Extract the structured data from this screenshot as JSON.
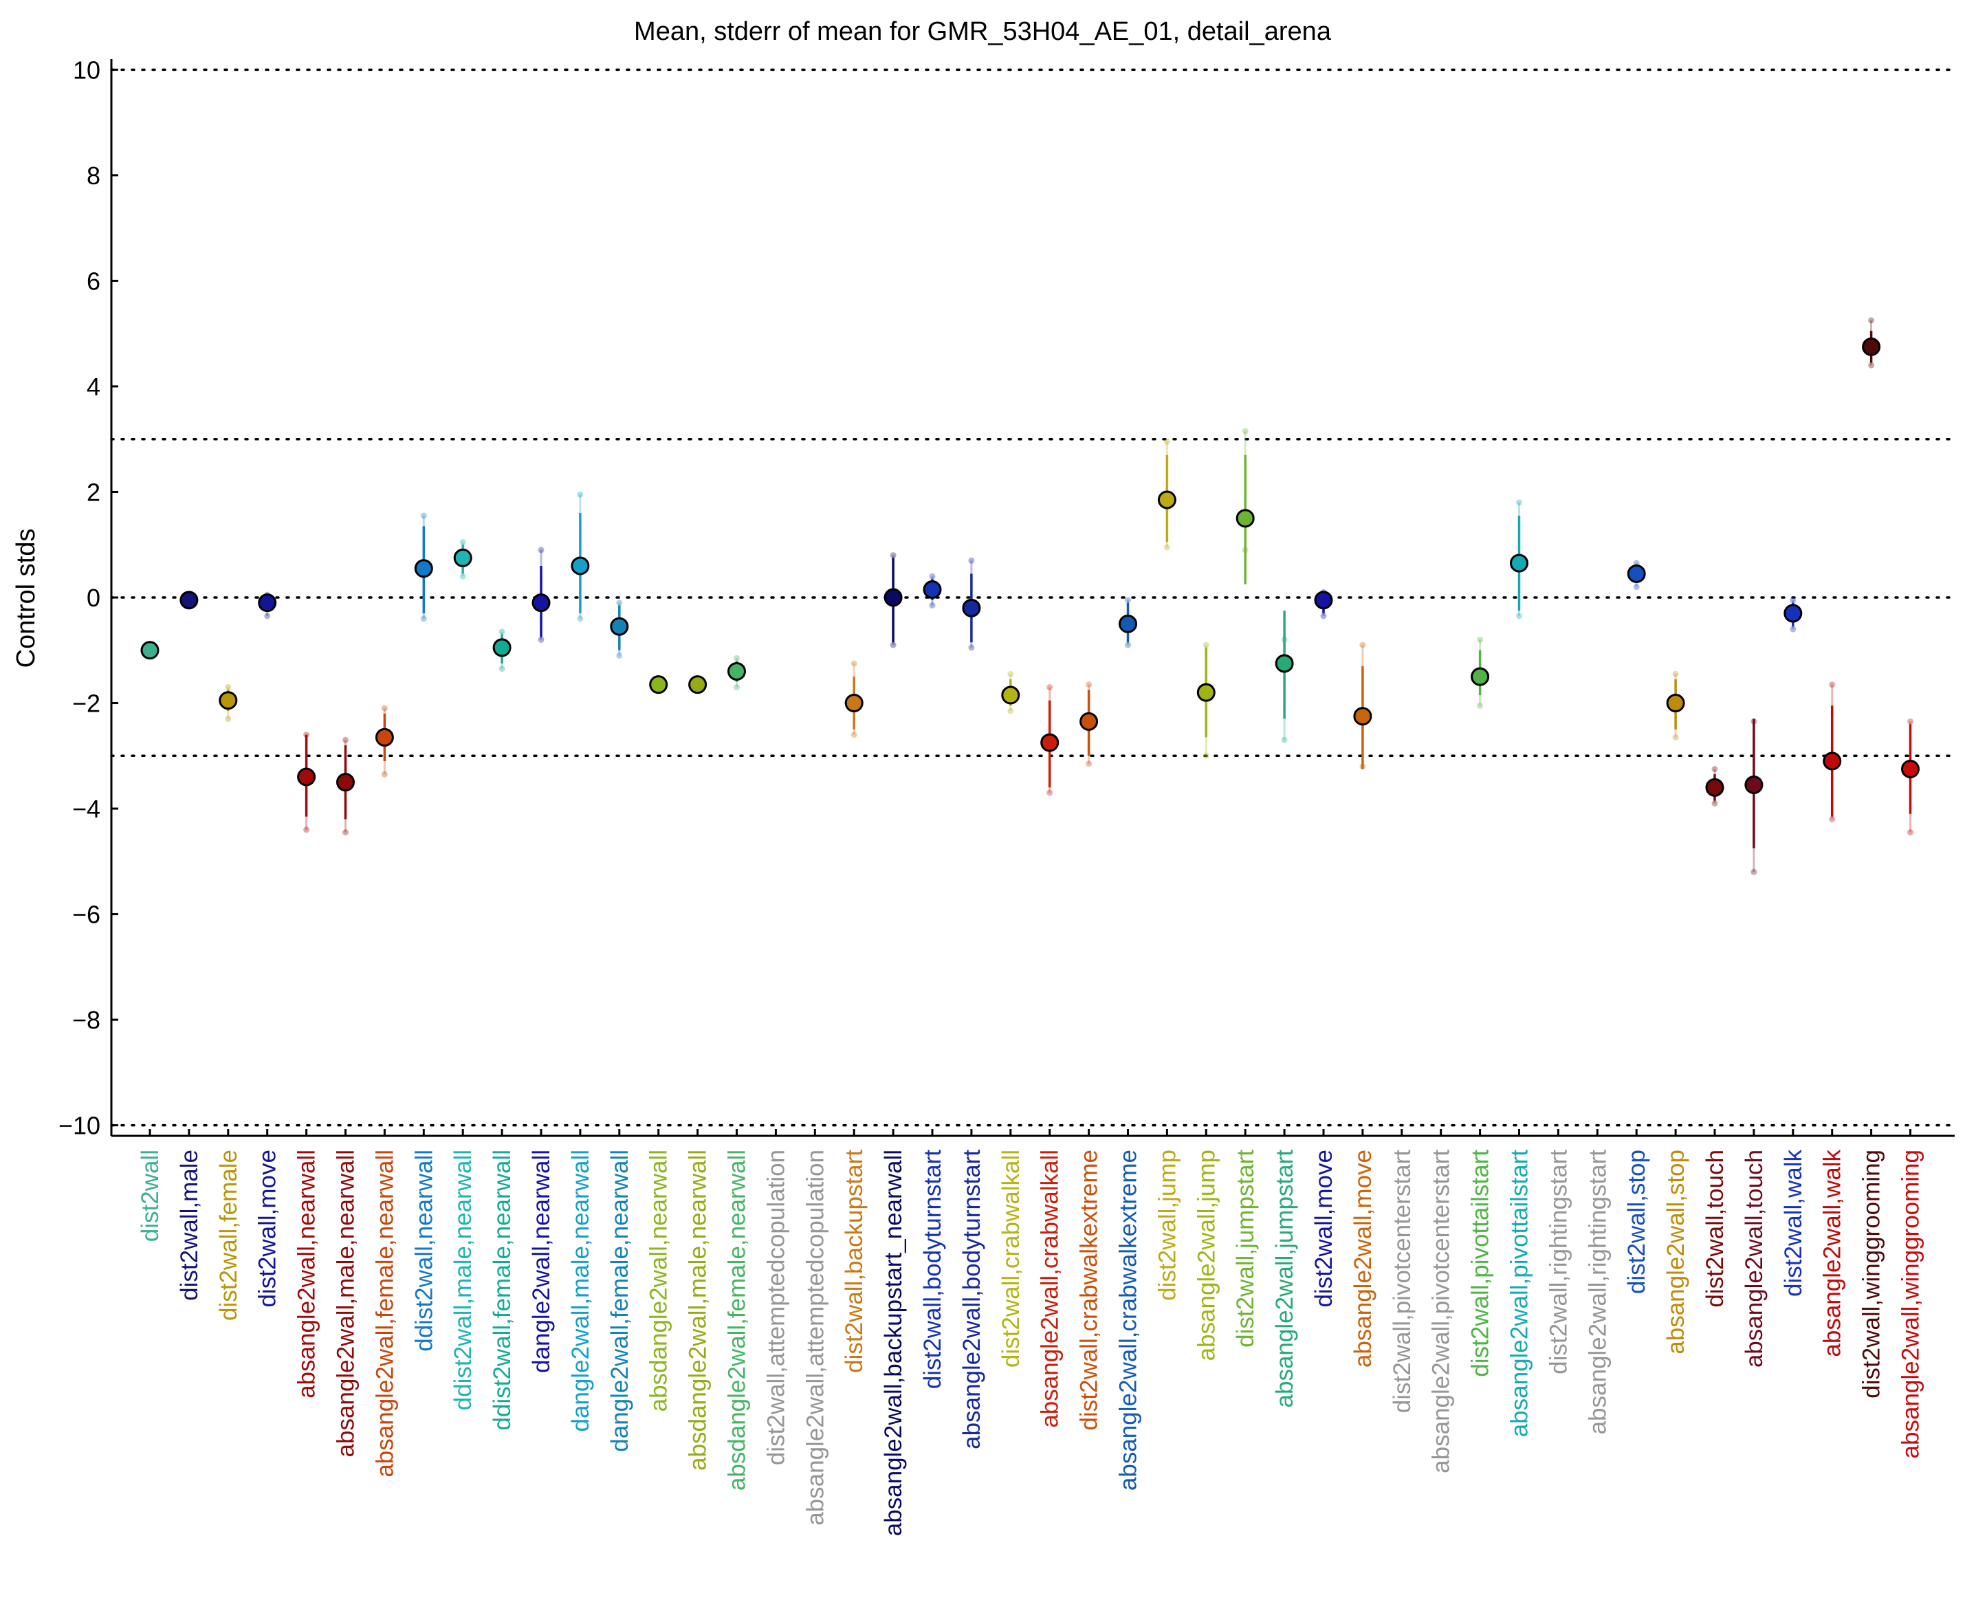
{
  "chart_data": {
    "type": "scatter",
    "title": "Mean, stderr of mean for GMR_53H04_AE_01, detail_arena",
    "xlabel": "",
    "ylabel": "Control stds",
    "ylim": [
      -10.2,
      10.2
    ],
    "yticks": [
      "10",
      "8",
      "6",
      "4",
      "2",
      "0",
      "−2",
      "−4",
      "−6",
      "−8",
      "−10"
    ],
    "ytick_values": [
      10,
      8,
      6,
      4,
      2,
      0,
      -2,
      -4,
      -6,
      -8,
      -10
    ],
    "reference_lines": [
      10,
      3,
      0,
      -3,
      -10
    ],
    "grid": false,
    "categories": [
      {
        "label": "dist2wall",
        "mean": -1.0,
        "se_lo": null,
        "se_hi": null,
        "min": null,
        "max": null,
        "color": "#3cb08c"
      },
      {
        "label": "dist2wall,male",
        "mean": -0.05,
        "se_lo": null,
        "se_hi": null,
        "min": null,
        "max": null,
        "color": "#141478"
      },
      {
        "label": "dist2wall,female",
        "mean": -1.95,
        "se_lo": -2.15,
        "se_hi": -1.75,
        "min": -2.3,
        "max": -1.7,
        "color": "#b8960a"
      },
      {
        "label": "dist2wall,move",
        "mean": -0.1,
        "se_lo": -0.25,
        "se_hi": 0.02,
        "min": -0.35,
        "max": 0.05,
        "color": "#141496"
      },
      {
        "label": "absangle2wall,nearwall",
        "mean": -3.4,
        "se_lo": -4.15,
        "se_hi": -2.6,
        "min": -4.4,
        "max": -2.6,
        "color": "#a00a0a"
      },
      {
        "label": "absangle2wall,male,nearwall",
        "mean": -3.5,
        "se_lo": -4.2,
        "se_hi": -2.8,
        "min": -4.45,
        "max": -2.7,
        "color": "#8c0a0a"
      },
      {
        "label": "absangle2wall,female,nearwall",
        "mean": -2.65,
        "se_lo": -3.1,
        "se_hi": -2.2,
        "min": -3.35,
        "max": -2.1,
        "color": "#c8460a"
      },
      {
        "label": "ddist2wall,nearwall",
        "mean": 0.55,
        "se_lo": -0.3,
        "se_hi": 1.35,
        "min": -0.4,
        "max": 1.55,
        "color": "#1478c8"
      },
      {
        "label": "ddist2wall,male,nearwall",
        "mean": 0.75,
        "se_lo": 0.45,
        "se_hi": 1.0,
        "min": 0.4,
        "max": 1.05,
        "color": "#1eb4b4"
      },
      {
        "label": "ddist2wall,female,nearwall",
        "mean": -0.95,
        "se_lo": -1.25,
        "se_hi": -0.7,
        "min": -1.35,
        "max": -0.65,
        "color": "#14aa96"
      },
      {
        "label": "dangle2wall,nearwall",
        "mean": -0.1,
        "se_lo": -0.75,
        "se_hi": 0.6,
        "min": -0.8,
        "max": 0.9,
        "color": "#1414a0"
      },
      {
        "label": "dangle2wall,male,nearwall",
        "mean": 0.6,
        "se_lo": -0.3,
        "se_hi": 1.6,
        "min": -0.4,
        "max": 1.95,
        "color": "#14a0c8"
      },
      {
        "label": "dangle2wall,female,nearwall",
        "mean": -0.55,
        "se_lo": -1.0,
        "se_hi": -0.15,
        "min": -1.1,
        "max": -0.1,
        "color": "#1482b4"
      },
      {
        "label": "absdangle2wall,nearwall",
        "mean": -1.65,
        "se_lo": null,
        "se_hi": null,
        "min": null,
        "max": null,
        "color": "#8cb41e"
      },
      {
        "label": "absdangle2wall,male,nearwall",
        "mean": -1.65,
        "se_lo": null,
        "se_hi": null,
        "min": null,
        "max": null,
        "color": "#96aa14"
      },
      {
        "label": "absdangle2wall,female,nearwall",
        "mean": -1.4,
        "se_lo": -1.6,
        "se_hi": -1.2,
        "min": -1.7,
        "max": -1.15,
        "color": "#46b464"
      },
      {
        "label": "dist2wall,attemptedcopulation",
        "mean": null,
        "se_lo": null,
        "se_hi": null,
        "min": null,
        "max": null,
        "color": "#969696"
      },
      {
        "label": "absangle2wall,attemptedcopulation",
        "mean": null,
        "se_lo": null,
        "se_hi": null,
        "min": null,
        "max": null,
        "color": "#969696"
      },
      {
        "label": "dist2wall,backupstart",
        "mean": -2.0,
        "se_lo": -2.5,
        "se_hi": -1.5,
        "min": -2.6,
        "max": -1.25,
        "color": "#c87814"
      },
      {
        "label": "absangle2wall,backupstart_nearwall",
        "mean": 0.0,
        "se_lo": -0.85,
        "se_hi": 0.75,
        "min": -0.9,
        "max": 0.8,
        "color": "#0a0a64"
      },
      {
        "label": "dist2wall,bodyturnstart",
        "mean": 0.15,
        "se_lo": -0.05,
        "se_hi": 0.35,
        "min": -0.15,
        "max": 0.4,
        "color": "#1432b4"
      },
      {
        "label": "absangle2wall,bodyturnstart",
        "mean": -0.2,
        "se_lo": -0.85,
        "se_hi": 0.45,
        "min": -0.95,
        "max": 0.7,
        "color": "#1428a0"
      },
      {
        "label": "dist2wall,crabwalkall",
        "mean": -1.85,
        "se_lo": -2.05,
        "se_hi": -1.55,
        "min": -2.15,
        "max": -1.45,
        "color": "#b4b414"
      },
      {
        "label": "absangle2wall,crabwalkall",
        "mean": -2.75,
        "se_lo": -3.6,
        "se_hi": -1.95,
        "min": -3.7,
        "max": -1.7,
        "color": "#c81e0a"
      },
      {
        "label": "dist2wall,crabwalkextreme",
        "mean": -2.35,
        "se_lo": -3.0,
        "se_hi": -1.75,
        "min": -3.15,
        "max": -1.65,
        "color": "#c8500a"
      },
      {
        "label": "absangle2wall,crabwalkextreme",
        "mean": -0.5,
        "se_lo": -0.85,
        "se_hi": -0.1,
        "min": -0.9,
        "max": -0.05,
        "color": "#145ab4"
      },
      {
        "label": "dist2wall,jump",
        "mean": 1.85,
        "se_lo": 1.05,
        "se_hi": 2.7,
        "min": 0.95,
        "max": 2.95,
        "color": "#beaa14"
      },
      {
        "label": "absangle2wall,jump",
        "mean": -1.8,
        "se_lo": -2.65,
        "se_hi": -0.95,
        "min": -3.0,
        "max": -0.9,
        "color": "#a0b414"
      },
      {
        "label": "dist2wall,jumpstart",
        "mean": 1.5,
        "se_lo": 0.25,
        "se_hi": 2.7,
        "min": 0.9,
        "max": 3.15,
        "color": "#6eb432"
      },
      {
        "label": "absangle2wall,jumpstart",
        "mean": -1.25,
        "se_lo": -2.3,
        "se_hi": -0.25,
        "min": -2.7,
        "max": -0.8,
        "color": "#28aa78"
      },
      {
        "label": "dist2wall,move",
        "mean": -0.05,
        "se_lo": -0.3,
        "se_hi": 0.05,
        "min": -0.35,
        "max": 0.1,
        "color": "#1414a0"
      },
      {
        "label": "absangle2wall,move",
        "mean": -2.25,
        "se_lo": -3.25,
        "se_hi": -1.3,
        "min": -3.2,
        "max": -0.9,
        "color": "#c8640a"
      },
      {
        "label": "dist2wall,pivotcenterstart",
        "mean": null,
        "se_lo": null,
        "se_hi": null,
        "min": null,
        "max": null,
        "color": "#969696"
      },
      {
        "label": "absangle2wall,pivotcenterstart",
        "mean": null,
        "se_lo": null,
        "se_hi": null,
        "min": null,
        "max": null,
        "color": "#969696"
      },
      {
        "label": "dist2wall,pivottailstart",
        "mean": -1.5,
        "se_lo": -1.85,
        "se_hi": -1.0,
        "min": -2.05,
        "max": -0.8,
        "color": "#50b446"
      },
      {
        "label": "absangle2wall,pivottailstart",
        "mean": 0.65,
        "se_lo": -0.25,
        "se_hi": 1.55,
        "min": -0.35,
        "max": 1.8,
        "color": "#14aab4"
      },
      {
        "label": "dist2wall,rightingstart",
        "mean": null,
        "se_lo": null,
        "se_hi": null,
        "min": null,
        "max": null,
        "color": "#969696"
      },
      {
        "label": "absangle2wall,rightingstart",
        "mean": null,
        "se_lo": null,
        "se_hi": null,
        "min": null,
        "max": null,
        "color": "#969696"
      },
      {
        "label": "dist2wall,stop",
        "mean": 0.45,
        "se_lo": 0.3,
        "se_hi": 0.6,
        "min": 0.2,
        "max": 0.65,
        "color": "#1450be"
      },
      {
        "label": "absangle2wall,stop",
        "mean": -2.0,
        "se_lo": -2.5,
        "se_hi": -1.55,
        "min": -2.65,
        "max": -1.45,
        "color": "#be8c0a"
      },
      {
        "label": "dist2wall,touch",
        "mean": -3.6,
        "se_lo": -3.85,
        "se_hi": -3.35,
        "min": -3.9,
        "max": -3.25,
        "color": "#780a0a"
      },
      {
        "label": "absangle2wall,touch",
        "mean": -3.55,
        "se_lo": -4.75,
        "se_hi": -2.3,
        "min": -5.2,
        "max": -2.35,
        "color": "#6e0a1e"
      },
      {
        "label": "dist2wall,walk",
        "mean": -0.3,
        "se_lo": -0.55,
        "se_hi": -0.1,
        "min": -0.6,
        "max": -0.05,
        "color": "#1432be"
      },
      {
        "label": "absangle2wall,walk",
        "mean": -3.1,
        "se_lo": -4.15,
        "se_hi": -2.05,
        "min": -4.2,
        "max": -1.65,
        "color": "#be0a0a"
      },
      {
        "label": "dist2wall,winggrooming",
        "mean": 4.75,
        "se_lo": 4.45,
        "se_hi": 5.05,
        "min": 4.4,
        "max": 5.25,
        "color": "#500a0a"
      },
      {
        "label": "absangle2wall,winggrooming",
        "mean": -3.25,
        "se_lo": -4.1,
        "se_hi": -2.4,
        "min": -4.45,
        "max": -2.35,
        "color": "#c80a0a"
      }
    ]
  }
}
